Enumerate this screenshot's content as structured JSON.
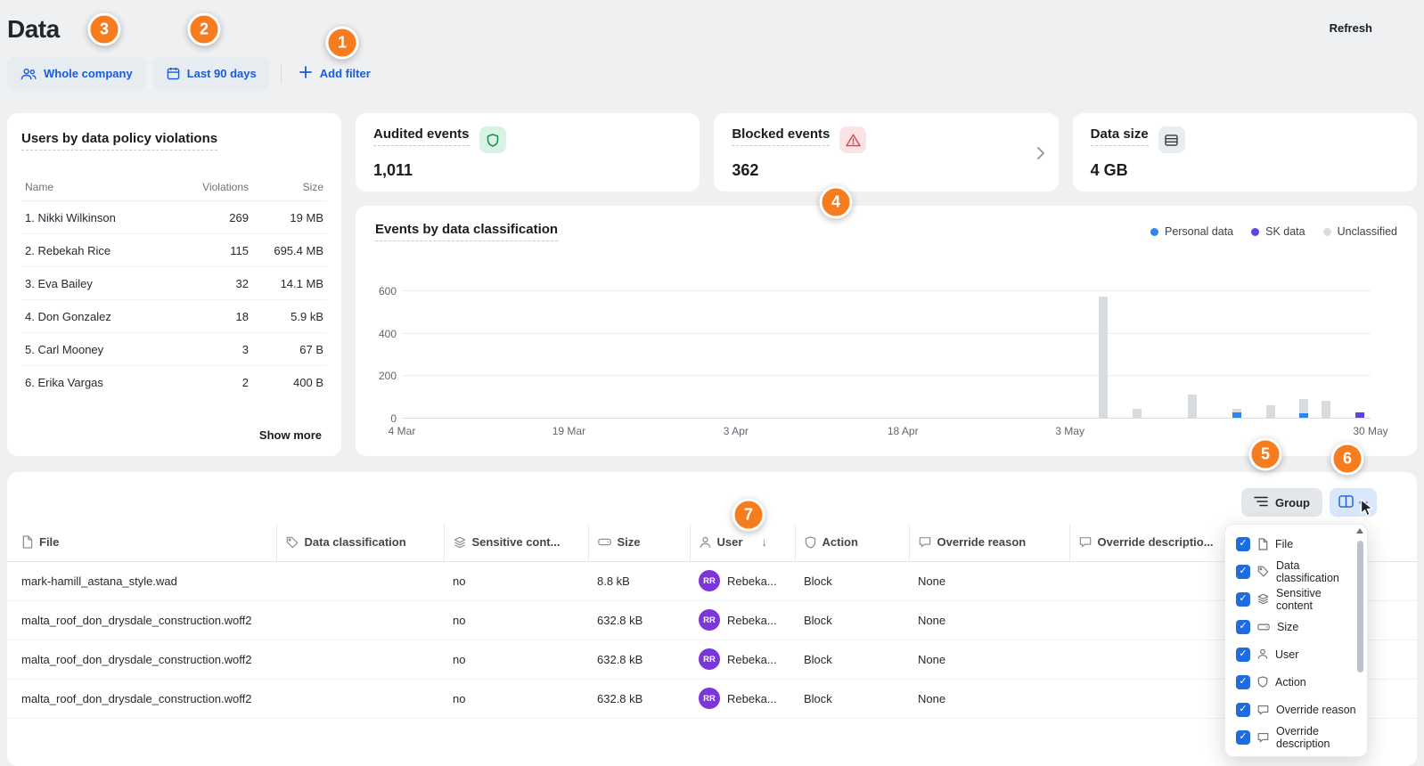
{
  "colors": {
    "accent_blue": "#1b5bd7",
    "callout_orange": "#f57d20",
    "avatar_purple": "#7c35d9",
    "audited_green": "#168a52",
    "blocked_red": "#d5454e"
  },
  "header": {
    "title": "Data",
    "refresh_label": "Refresh",
    "filter_company": "Whole company",
    "filter_period": "Last 90 days",
    "add_filter_label": "Add filter"
  },
  "callouts": {
    "c1": "1",
    "c2": "2",
    "c3": "3",
    "c4": "4",
    "c5": "5",
    "c6": "6",
    "c7": "7"
  },
  "violations": {
    "title": "Users by data policy violations",
    "columns": {
      "name": "Name",
      "violations": "Violations",
      "size": "Size"
    },
    "rows": [
      {
        "name": "1. Nikki Wilkinson",
        "violations": "269",
        "size": "19 MB"
      },
      {
        "name": "2. Rebekah Rice",
        "violations": "115",
        "size": "695.4 MB"
      },
      {
        "name": "3. Eva Bailey",
        "violations": "32",
        "size": "14.1 MB"
      },
      {
        "name": "4. Don Gonzalez",
        "violations": "18",
        "size": "5.9 kB"
      },
      {
        "name": "5. Carl Mooney",
        "violations": "3",
        "size": "67 B"
      },
      {
        "name": "6. Erika Vargas",
        "violations": "2",
        "size": "400 B"
      }
    ],
    "show_more_label": "Show more"
  },
  "stats": {
    "audited": {
      "title": "Audited events",
      "value": "1,011"
    },
    "blocked": {
      "title": "Blocked events",
      "value": "362"
    },
    "datasize": {
      "title": "Data size",
      "value": "4 GB"
    }
  },
  "chart": {
    "title": "Events by data classification",
    "legend": [
      {
        "label": "Personal data",
        "color": "#2f86eb"
      },
      {
        "label": "SK data",
        "color": "#5b46e0"
      },
      {
        "label": "Unclassified",
        "color": "#d9dcdf"
      }
    ]
  },
  "chart_data": {
    "type": "bar",
    "stacked": true,
    "title": "Events by data classification",
    "ylim": [
      0,
      600
    ],
    "yticks": [
      0,
      200,
      400,
      600
    ],
    "series_colors": {
      "personal": "#2f86eb",
      "sk": "#5b46e0",
      "unclassified": "#d9dcdf"
    },
    "series_names": {
      "personal": "Personal data",
      "sk": "SK data",
      "unclassified": "Unclassified"
    },
    "x_axis": {
      "total_days": 87,
      "ticks": [
        {
          "label": "4 Mar",
          "day": 0
        },
        {
          "label": "19 Mar",
          "day": 15
        },
        {
          "label": "3 Apr",
          "day": 30
        },
        {
          "label": "18 Apr",
          "day": 45
        },
        {
          "label": "3 May",
          "day": 60
        },
        {
          "label": "30 May",
          "day": 87
        }
      ]
    },
    "points": [
      {
        "date": "6 May",
        "day": 63,
        "personal": 0,
        "sk": 0,
        "unclassified": 570
      },
      {
        "date": "9 May",
        "day": 66,
        "personal": 0,
        "sk": 0,
        "unclassified": 40
      },
      {
        "date": "14 May",
        "day": 71,
        "personal": 0,
        "sk": 0,
        "unclassified": 110
      },
      {
        "date": "18 May",
        "day": 75,
        "personal": 25,
        "sk": 0,
        "unclassified": 15
      },
      {
        "date": "21 May",
        "day": 78,
        "personal": 0,
        "sk": 0,
        "unclassified": 60
      },
      {
        "date": "24 May",
        "day": 81,
        "personal": 20,
        "sk": 0,
        "unclassified": 70
      },
      {
        "date": "26 May",
        "day": 83,
        "personal": 0,
        "sk": 0,
        "unclassified": 80
      },
      {
        "date": "29 May",
        "day": 86,
        "personal": 0,
        "sk": 25,
        "unclassified": 0
      }
    ]
  },
  "toolbar": {
    "group_label": "Group"
  },
  "events_table": {
    "sort_indicator": "↓",
    "headers": {
      "file": "File",
      "classification": "Data classification",
      "sensitive": "Sensitive cont...",
      "size": "Size",
      "user": "User",
      "action": "Action",
      "override_reason": "Override reason",
      "override_description": "Override descriptio..."
    },
    "rows": [
      {
        "file": "mark-hamill_astana_style.wad",
        "classification": "",
        "sensitive": "no",
        "size": "8.8 kB",
        "user_initials": "RR",
        "user": "Rebeka...",
        "action": "Block",
        "override_reason": "None",
        "override_description": ""
      },
      {
        "file": "malta_roof_don_drysdale_construction.woff2",
        "classification": "",
        "sensitive": "no",
        "size": "632.8 kB",
        "user_initials": "RR",
        "user": "Rebeka...",
        "action": "Block",
        "override_reason": "None",
        "override_description": ""
      },
      {
        "file": "malta_roof_don_drysdale_construction.woff2",
        "classification": "",
        "sensitive": "no",
        "size": "632.8 kB",
        "user_initials": "RR",
        "user": "Rebeka...",
        "action": "Block",
        "override_reason": "None",
        "override_description": ""
      },
      {
        "file": "malta_roof_don_drysdale_construction.woff2",
        "classification": "",
        "sensitive": "no",
        "size": "632.8 kB",
        "user_initials": "RR",
        "user": "Rebeka...",
        "action": "Block",
        "override_reason": "None",
        "override_description": ""
      }
    ]
  },
  "columns_menu": {
    "items": [
      {
        "label": "File",
        "checked": true
      },
      {
        "label": "Data classification",
        "checked": true
      },
      {
        "label": "Sensitive content",
        "checked": true
      },
      {
        "label": "Size",
        "checked": true
      },
      {
        "label": "User",
        "checked": true
      },
      {
        "label": "Action",
        "checked": true
      },
      {
        "label": "Override reason",
        "checked": true
      },
      {
        "label": "Override description",
        "checked": true
      }
    ],
    "check_glyph": "✓"
  }
}
